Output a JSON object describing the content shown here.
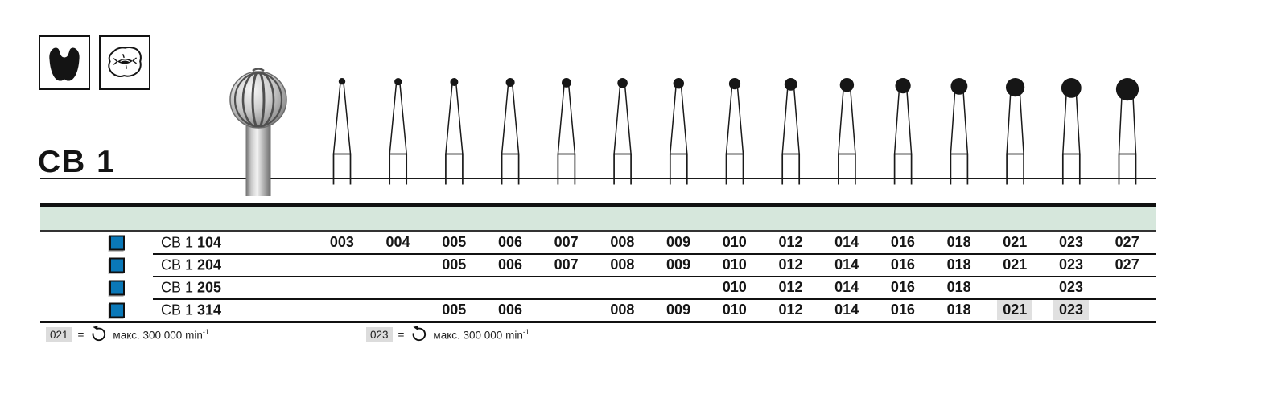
{
  "page": {
    "title": "CB 1",
    "category_icons": [
      {
        "name": "tooth-crown-icon"
      },
      {
        "name": "occlusal-surface-icon"
      }
    ]
  },
  "diagram": {
    "bur_sizes": [
      "003",
      "004",
      "005",
      "006",
      "007",
      "008",
      "009",
      "010",
      "012",
      "014",
      "016",
      "018",
      "021",
      "023",
      "027"
    ]
  },
  "table": {
    "size_columns": [
      "003",
      "004",
      "005",
      "006",
      "007",
      "008",
      "009",
      "010",
      "012",
      "014",
      "016",
      "018",
      "021",
      "023",
      "027"
    ],
    "rows": [
      {
        "series": "CB 1",
        "code": "104",
        "values": [
          "003",
          "004",
          "005",
          "006",
          "007",
          "008",
          "009",
          "010",
          "012",
          "014",
          "016",
          "018",
          "021",
          "023",
          "027"
        ],
        "highlighted": []
      },
      {
        "series": "CB 1",
        "code": "204",
        "values": [
          null,
          null,
          "005",
          "006",
          "007",
          "008",
          "009",
          "010",
          "012",
          "014",
          "016",
          "018",
          "021",
          "023",
          "027"
        ],
        "highlighted": []
      },
      {
        "series": "CB 1",
        "code": "205",
        "values": [
          null,
          null,
          null,
          null,
          null,
          null,
          null,
          "010",
          "012",
          "014",
          "016",
          "018",
          null,
          "023",
          null
        ],
        "highlighted": []
      },
      {
        "series": "CB 1",
        "code": "314",
        "values": [
          null,
          null,
          "005",
          "006",
          null,
          "008",
          "009",
          "010",
          "012",
          "014",
          "016",
          "018",
          "021",
          "023",
          null
        ],
        "highlighted": [
          "021",
          "023"
        ]
      }
    ]
  },
  "footnotes": [
    {
      "size": "021",
      "equals": "=",
      "icon": "rotation-speed-icon",
      "text": "макс. 300 000 min",
      "sup": "-1"
    },
    {
      "size": "023",
      "equals": "=",
      "icon": "rotation-speed-icon",
      "text": "макс. 300 000 min",
      "sup": "-1"
    }
  ],
  "colors": {
    "accent_blue": "#0a78b8",
    "band_green": "#d6e7dc",
    "highlight_gray": "#e0e0e0",
    "line_black": "#141414"
  }
}
